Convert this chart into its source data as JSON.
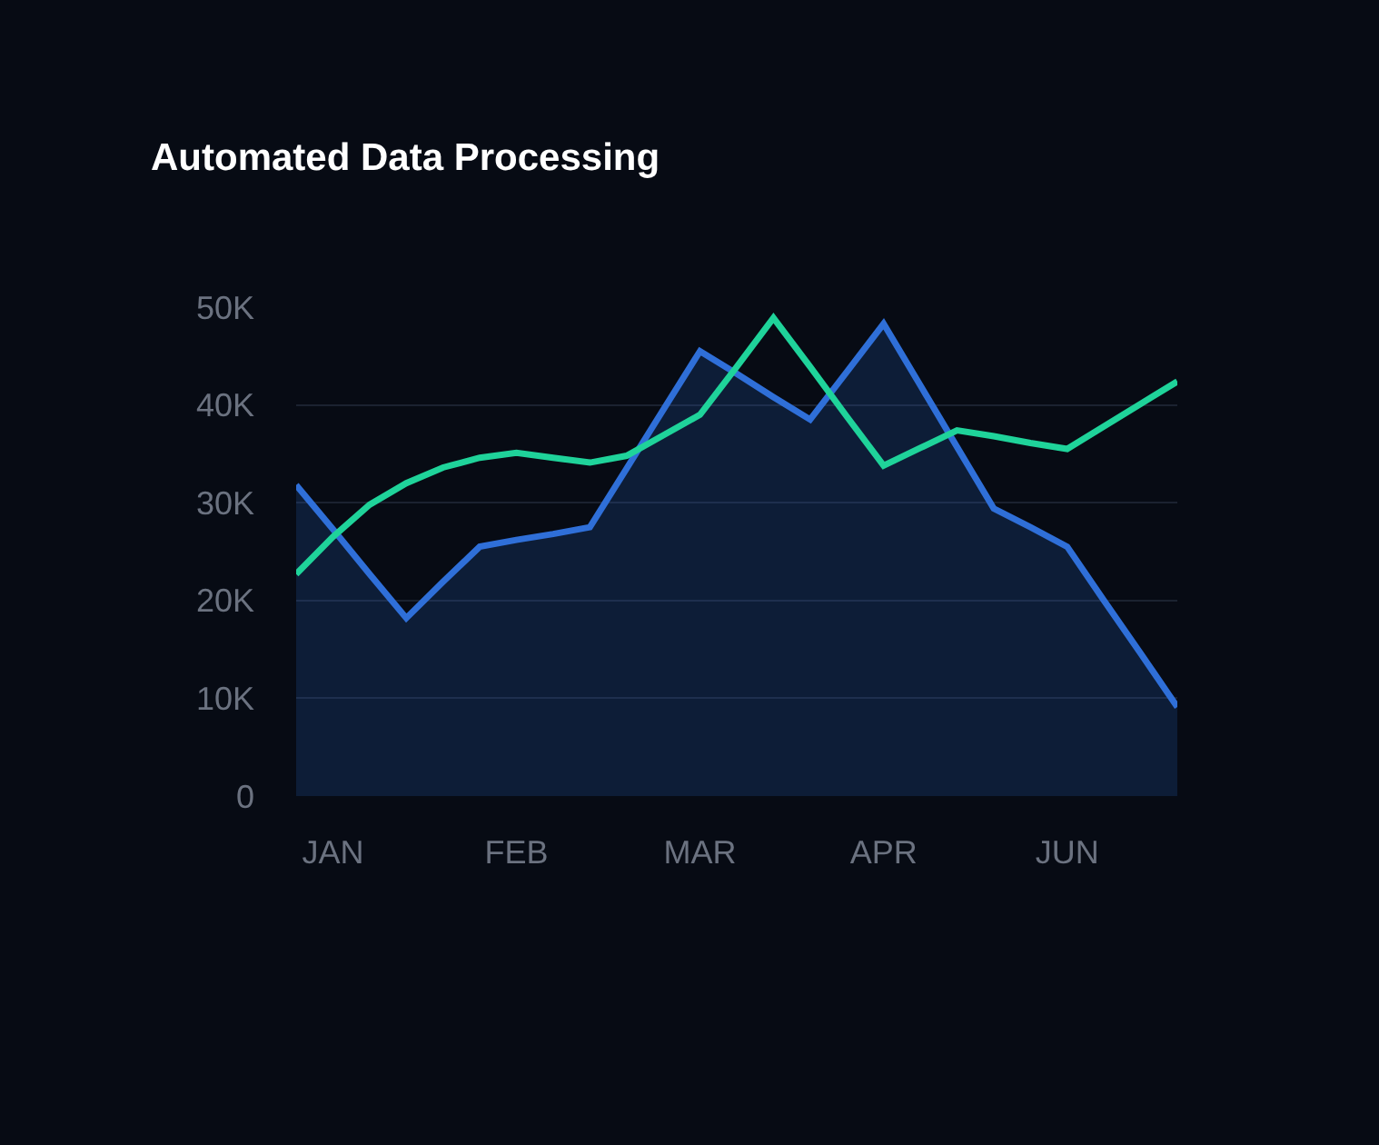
{
  "chart_data": {
    "type": "line",
    "title": "Automated Data Processing",
    "categories": [
      null,
      "JAN",
      null,
      null,
      null,
      null,
      "FEB",
      null,
      null,
      null,
      null,
      "MAR",
      null,
      null,
      null,
      null,
      "APR",
      null,
      null,
      null,
      null,
      "JUN",
      null,
      null,
      null
    ],
    "ylim": [
      0,
      50000
    ],
    "yticks": [
      0,
      {
        "value": 10000,
        "label": "10K"
      },
      {
        "value": 20000,
        "label": "20K"
      },
      {
        "value": 30000,
        "label": "30K"
      },
      {
        "value": 40000,
        "label": "40K"
      },
      {
        "value": 50000,
        "label": "50K"
      }
    ],
    "grid": "y",
    "legend": false,
    "marker": "none",
    "line_style": "solid",
    "series": [
      {
        "type": "area",
        "color": "#2f6fd8",
        "values": [
          31800,
          27300,
          22700,
          18200,
          21900,
          25500,
          26200,
          26800,
          27500,
          33500,
          39500,
          45500,
          43200,
          40800,
          38500,
          43400,
          48300,
          42000,
          35700,
          29400,
          27500,
          25500,
          20000,
          14600,
          9100
        ]
      },
      {
        "color": "#1fd39a",
        "values": [
          22700,
          26500,
          29800,
          32000,
          33600,
          34600,
          35100,
          34600,
          34100,
          34800,
          36900,
          39000,
          43900,
          48900,
          43900,
          38800,
          33800,
          35600,
          37400,
          36800,
          36100,
          35500,
          37800,
          40100,
          42400
        ]
      }
    ]
  }
}
